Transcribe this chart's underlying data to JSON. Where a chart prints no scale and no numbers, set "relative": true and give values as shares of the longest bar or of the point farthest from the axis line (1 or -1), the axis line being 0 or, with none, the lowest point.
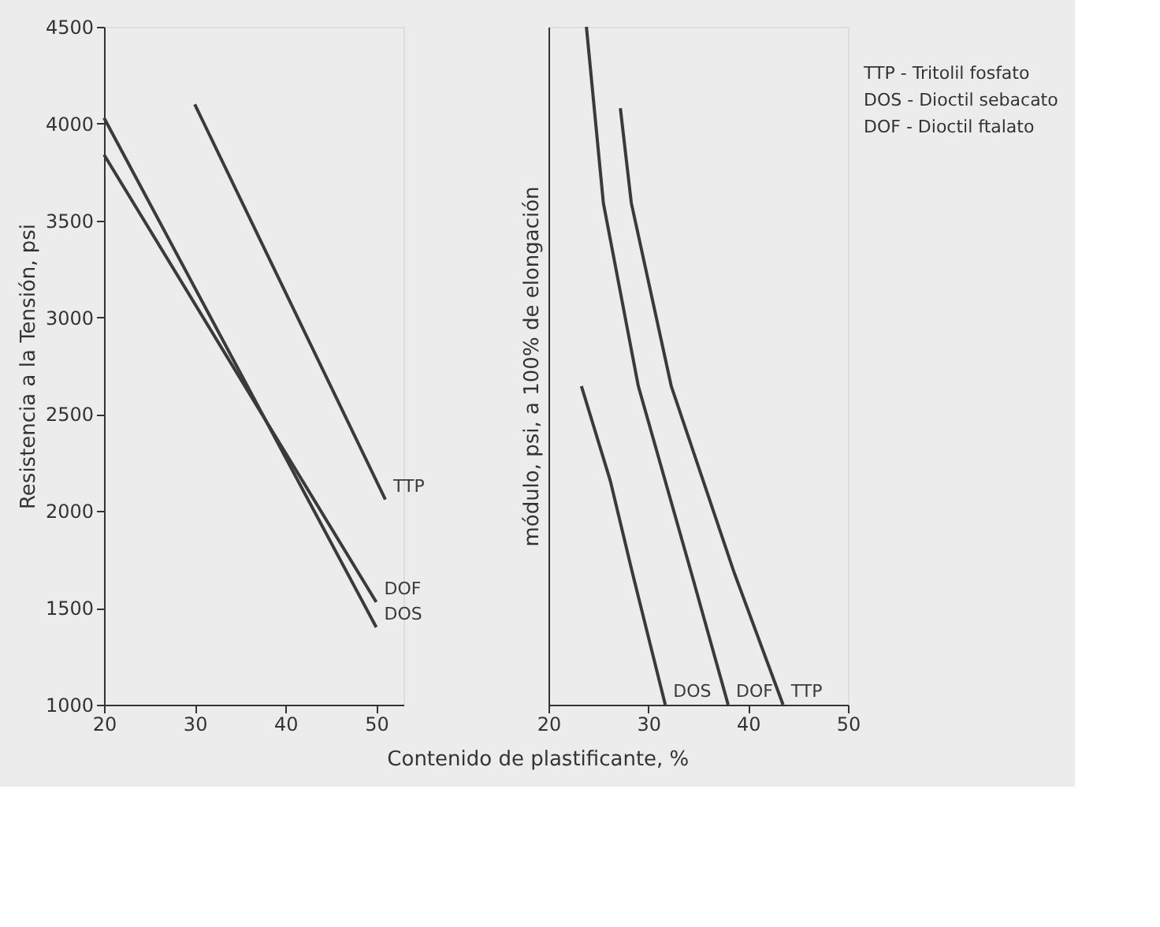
{
  "chart_data": [
    {
      "type": "line",
      "xlabel": "Contenido de plastificante, %",
      "ylabel": "Resistencia a la Tensión, psi",
      "xlim": [
        20,
        53
      ],
      "xticks": [
        20,
        30,
        40,
        50
      ],
      "ylim": [
        1000,
        4500
      ],
      "yticks": [
        1000,
        1500,
        2000,
        2500,
        3000,
        3500,
        4000,
        4500
      ],
      "marker": "none",
      "series": [
        {
          "name": "TTP",
          "color": "#3a3a3a",
          "x": [
            30,
            51
          ],
          "values": [
            4100,
            2060
          ]
        },
        {
          "name": "DOS",
          "color": "#3a3a3a",
          "x": [
            20,
            50
          ],
          "values": [
            4030,
            1400
          ]
        },
        {
          "name": "DOF",
          "color": "#3a3a3a",
          "x": [
            20,
            50
          ],
          "values": [
            3840,
            1530
          ]
        }
      ]
    },
    {
      "type": "line",
      "ylabel": "módulo, psi, a 100% de elongación",
      "relative": true,
      "xlim": [
        20,
        50
      ],
      "xticks": [
        20,
        30,
        40,
        50
      ],
      "marker": "none",
      "annotations": [
        "TTP - Tritolil fosfato",
        "DOS - Dioctil sebacato",
        "DOF - Dioctil ftalato"
      ],
      "series": [
        {
          "name": "DOF",
          "color": "#3a3a3a",
          "x": [
            23.8,
            25.5,
            29.0,
            34.3,
            38.0
          ],
          "values": [
            1.0,
            0.74,
            0.47,
            0.195,
            0
          ]
        },
        {
          "name": "TTP",
          "color": "#3a3a3a",
          "x": [
            27.2,
            28.3,
            32.3,
            38.6,
            43.5
          ],
          "values": [
            0.88,
            0.74,
            0.47,
            0.195,
            0
          ]
        },
        {
          "name": "DOS",
          "color": "#3a3a3a",
          "x": [
            23.3,
            26.2,
            28.4,
            31.7
          ],
          "values": [
            0.47,
            0.33,
            0.195,
            0
          ]
        }
      ]
    }
  ]
}
